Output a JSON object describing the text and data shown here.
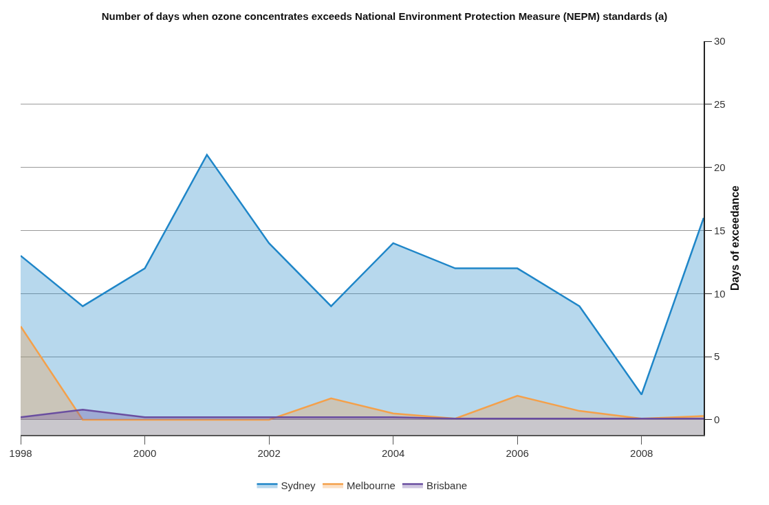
{
  "chart_data": {
    "type": "area",
    "title": "Number of days when ozone concentrates exceeds National Environment Protection Measure (NEPM) standards (a)",
    "ylabel": "Days of exceedance",
    "x": [
      1998,
      1999,
      2000,
      2001,
      2002,
      2003,
      2004,
      2005,
      2006,
      2007,
      2008,
      2009
    ],
    "series": [
      {
        "name": "Sydney",
        "color": "#1f86c8",
        "values": [
          13,
          9,
          12,
          21,
          14,
          9,
          14,
          12,
          12,
          9,
          2,
          16
        ]
      },
      {
        "name": "Melbourne",
        "color": "#f4a04a",
        "values": [
          7.4,
          0,
          0,
          0,
          0,
          1.7,
          0.5,
          0.1,
          1.9,
          0.7,
          0.1,
          0.3
        ]
      },
      {
        "name": "Brisbane",
        "color": "#6a4ea0",
        "values": [
          0.2,
          0.8,
          0.2,
          0.2,
          0.2,
          0.2,
          0.2,
          0.1,
          0.1,
          0.1,
          0.1,
          0.1
        ]
      }
    ],
    "xlim": [
      1998,
      2009
    ],
    "xticks": [
      1998,
      2000,
      2002,
      2004,
      2006,
      2008
    ],
    "ylim": [
      -1.2,
      30
    ],
    "yticks": [
      0,
      5,
      10,
      15,
      20,
      25,
      30
    ],
    "bands": [
      {
        "axis": "y",
        "from": -1.2,
        "to": 0,
        "color": "#c9c7cc"
      }
    ],
    "grid": "y",
    "legend": "bottom",
    "marker": "none",
    "line_style": "solid"
  }
}
